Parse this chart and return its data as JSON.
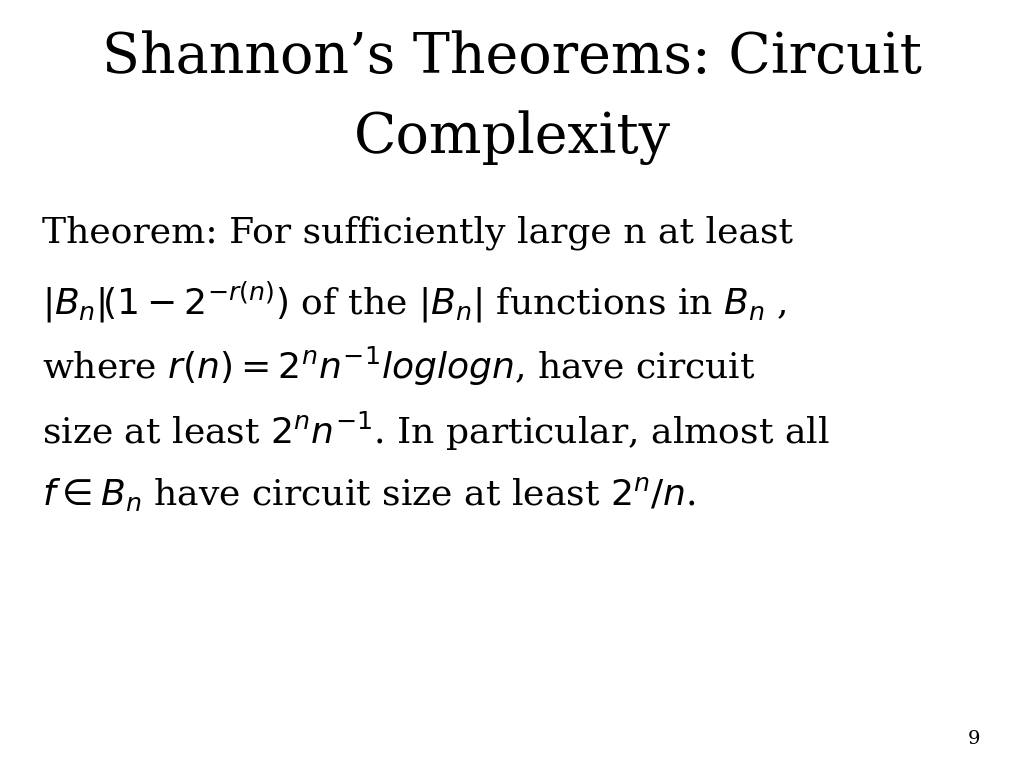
{
  "title_line1": "Shannon’s Theorems: Circuit",
  "title_line2": "Complexity",
  "background_color": "#ffffff",
  "text_color": "#000000",
  "title_fontsize": 40,
  "body_fontsize": 26,
  "page_number": "9",
  "page_number_fontsize": 14
}
